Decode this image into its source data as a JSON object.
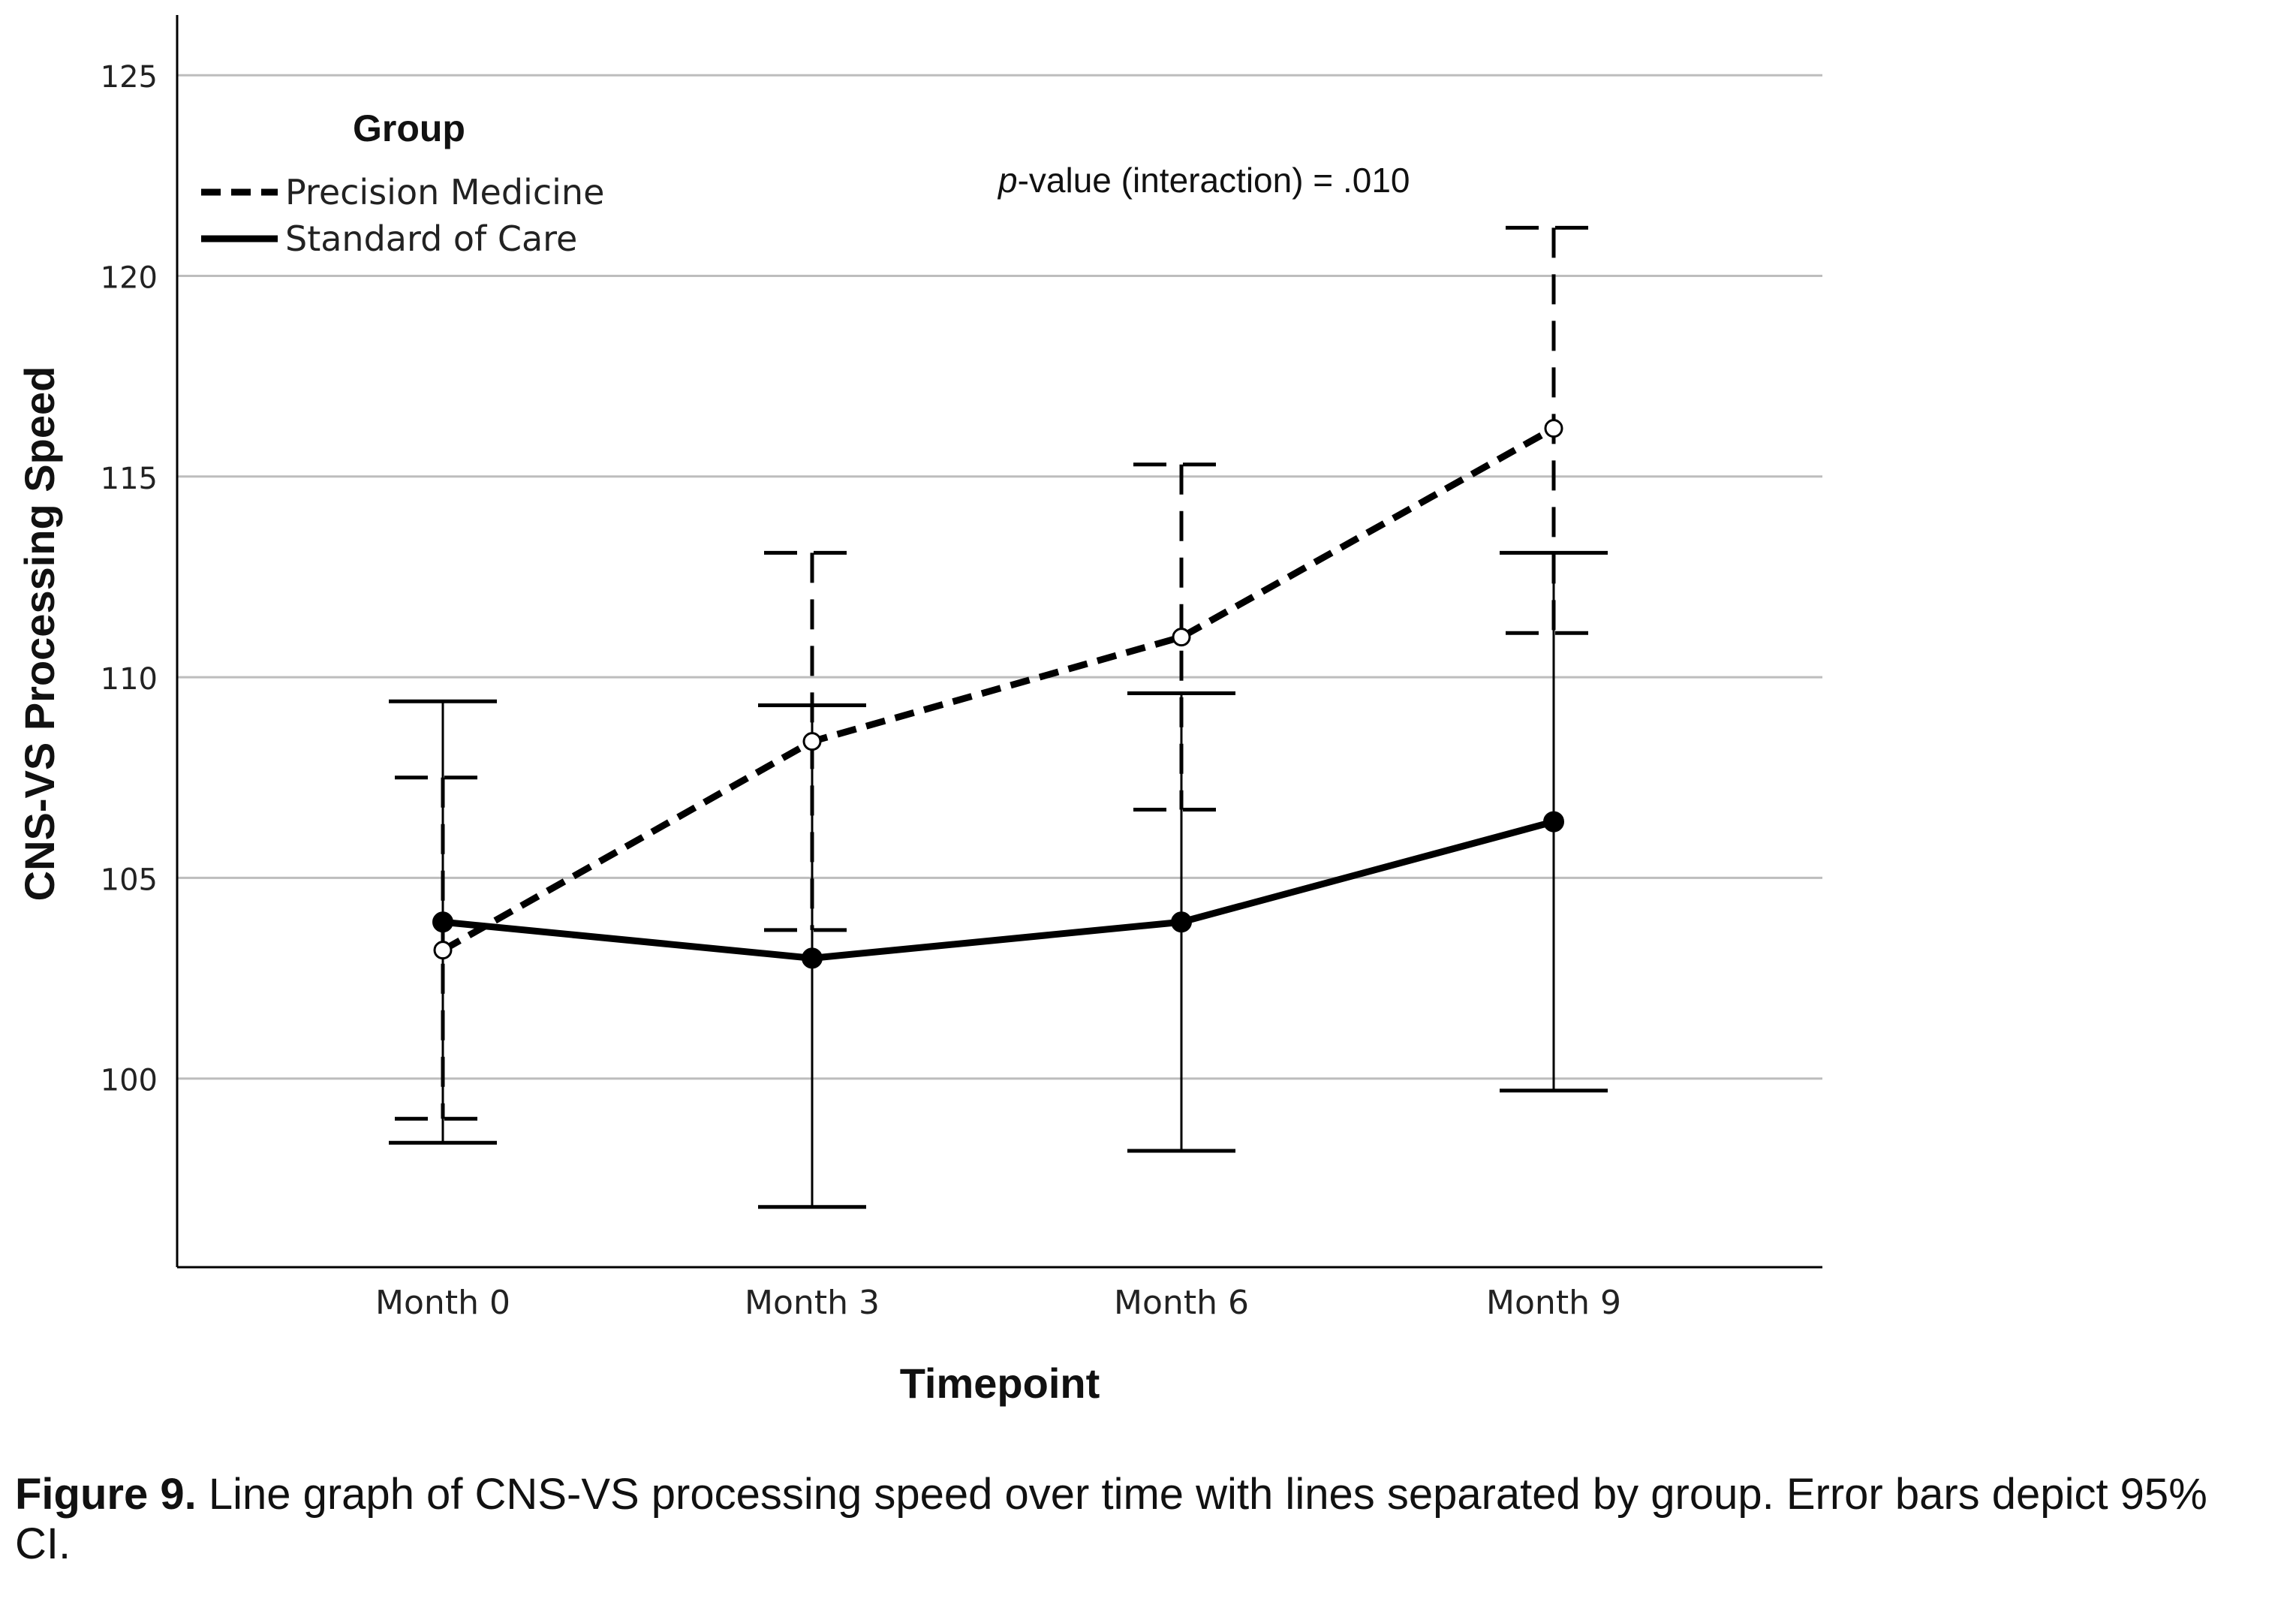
{
  "chart_data": {
    "type": "line",
    "legend_title": "Group",
    "legend_position": "top-left",
    "annotation_prefix": "p",
    "annotation_rest": "-value (interaction) = .010",
    "xlabel": "Timepoint",
    "ylabel": "CNS-VS Processing Speed",
    "categories": [
      "Month 0",
      "Month 3",
      "Month 6",
      "Month 9"
    ],
    "ylim": [
      95.3,
      126.5
    ],
    "yticks": [
      100,
      105,
      110,
      115,
      120,
      125
    ],
    "grid": "horizontal",
    "series": [
      {
        "name": "Precision Medicine",
        "style": "dashed",
        "marker": "open-circle",
        "color": "#000000",
        "values": [
          103.2,
          108.4,
          111.0,
          116.2
        ],
        "ci_low": [
          99.0,
          103.7,
          106.7,
          111.1
        ],
        "ci_high": [
          107.5,
          113.1,
          115.3,
          121.2
        ]
      },
      {
        "name": "Standard of Care",
        "style": "solid",
        "marker": "filled-circle",
        "color": "#000000",
        "values": [
          103.9,
          103.0,
          103.9,
          106.4
        ],
        "ci_low": [
          98.4,
          96.8,
          98.2,
          99.7
        ],
        "ci_high": [
          109.4,
          109.3,
          109.6,
          113.1
        ]
      }
    ]
  },
  "caption": {
    "label": "Figure 9.",
    "text": " Line graph of CNS-VS processing speed over time with lines separated by group. Error bars depict 95% CI."
  }
}
